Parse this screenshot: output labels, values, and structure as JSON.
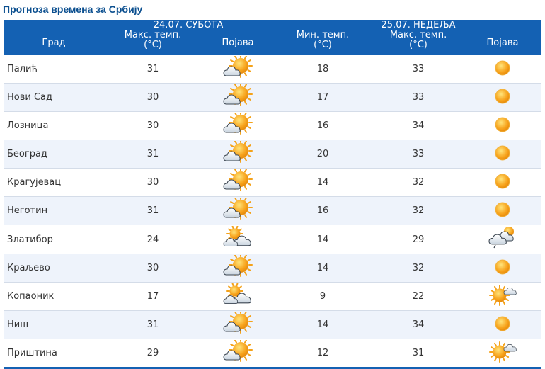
{
  "page": {
    "title": "Прогноза времена за Србију"
  },
  "header": {
    "day1_label": "24.07. СУБОТА",
    "day2_label": "25.07. НЕДЕЉА",
    "col_city": "Град",
    "col_day1_max": "Макс. темп.",
    "col_day1_max_unit": "(°C)",
    "col_day1_icon": "Појава",
    "col_day2_min": "Мин. темп.",
    "col_day2_min_unit": "(°C)",
    "col_day2_max": "Макс. темп.",
    "col_day2_max_unit": "(°C)",
    "col_day2_icon": "Појава"
  },
  "colors": {
    "header_bg": "#1461b3",
    "title": "#0b4f8f",
    "row_alt": "#eef3fb"
  },
  "rows": [
    {
      "city": "Палић",
      "d1_max": "31",
      "d1_icon": "sun-behind-cloud-icon",
      "d2_min": "18",
      "d2_max": "33",
      "d2_icon": "sun-icon"
    },
    {
      "city": "Нови Сад",
      "d1_max": "30",
      "d1_icon": "sun-behind-cloud-icon",
      "d2_min": "17",
      "d2_max": "33",
      "d2_icon": "sun-icon"
    },
    {
      "city": "Лозница",
      "d1_max": "30",
      "d1_icon": "sun-behind-cloud-icon",
      "d2_min": "16",
      "d2_max": "34",
      "d2_icon": "sun-icon"
    },
    {
      "city": "Београд",
      "d1_max": "31",
      "d1_icon": "sun-behind-cloud-icon",
      "d2_min": "20",
      "d2_max": "33",
      "d2_icon": "sun-icon"
    },
    {
      "city": "Крагујевац",
      "d1_max": "30",
      "d1_icon": "sun-behind-cloud-icon",
      "d2_min": "14",
      "d2_max": "32",
      "d2_icon": "sun-icon"
    },
    {
      "city": "Неготин",
      "d1_max": "31",
      "d1_icon": "sun-behind-cloud-icon",
      "d2_min": "16",
      "d2_max": "32",
      "d2_icon": "sun-icon"
    },
    {
      "city": "Златибор",
      "d1_max": "24",
      "d1_icon": "clouds-with-sun-icon",
      "d2_min": "14",
      "d2_max": "29",
      "d2_icon": "cloud-with-rain-icon"
    },
    {
      "city": "Краљево",
      "d1_max": "30",
      "d1_icon": "sun-behind-cloud-icon",
      "d2_min": "14",
      "d2_max": "32",
      "d2_icon": "sun-icon"
    },
    {
      "city": "Копаоник",
      "d1_max": "17",
      "d1_icon": "clouds-with-sun-icon",
      "d2_min": "9",
      "d2_max": "22",
      "d2_icon": "sun-with-cloud-icon"
    },
    {
      "city": "Ниш",
      "d1_max": "31",
      "d1_icon": "sun-behind-cloud-icon",
      "d2_min": "14",
      "d2_max": "34",
      "d2_icon": "sun-icon"
    },
    {
      "city": "Приштина",
      "d1_max": "29",
      "d1_icon": "sun-behind-cloud-icon",
      "d2_min": "12",
      "d2_max": "31",
      "d2_icon": "sun-with-cloud-icon"
    }
  ]
}
